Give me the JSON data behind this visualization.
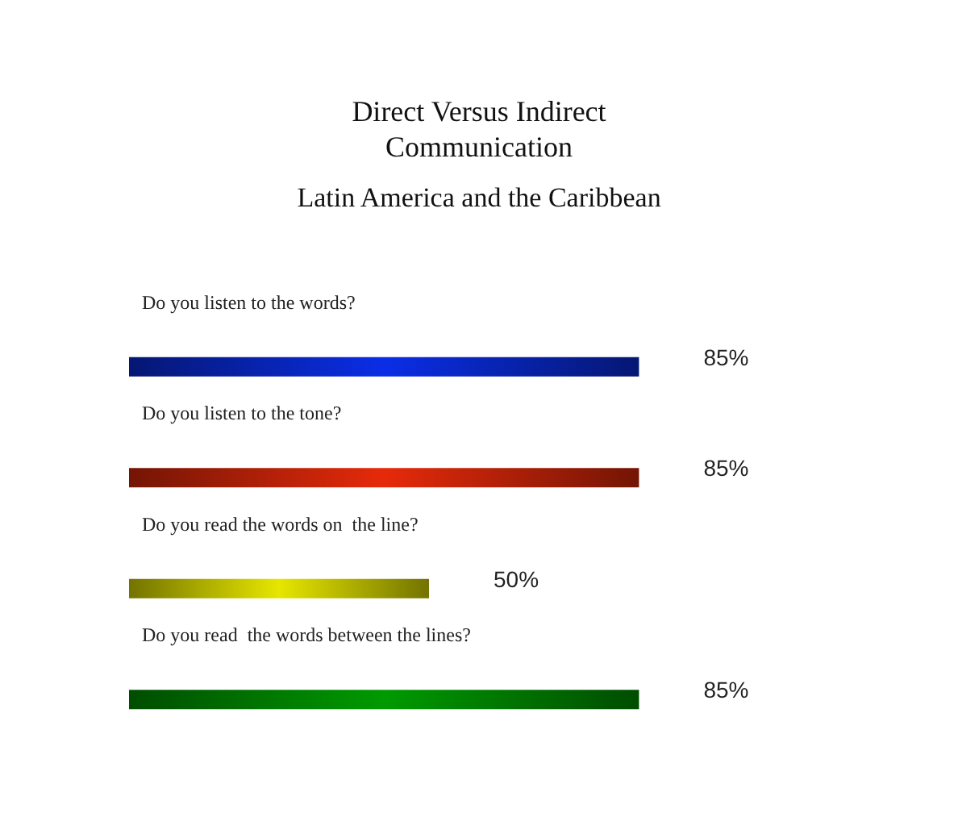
{
  "chart_data": {
    "type": "bar",
    "orientation": "horizontal",
    "title": "Direct Versus Indirect\nCommunication",
    "subtitle": "Latin America and the Caribbean",
    "categories": [
      "Do you listen to the words?",
      "Do you listen to the tone?",
      "Do you read the words on  the line?",
      "Do you read  the words between the lines?"
    ],
    "values": [
      85,
      85,
      50,
      85
    ],
    "colors": [
      "#0a2ee6",
      "#e62a0a",
      "#e6e600",
      "#009a00"
    ],
    "value_labels": [
      "85%",
      "85%",
      "50%",
      "85%"
    ],
    "tick_labels": "y"
  }
}
